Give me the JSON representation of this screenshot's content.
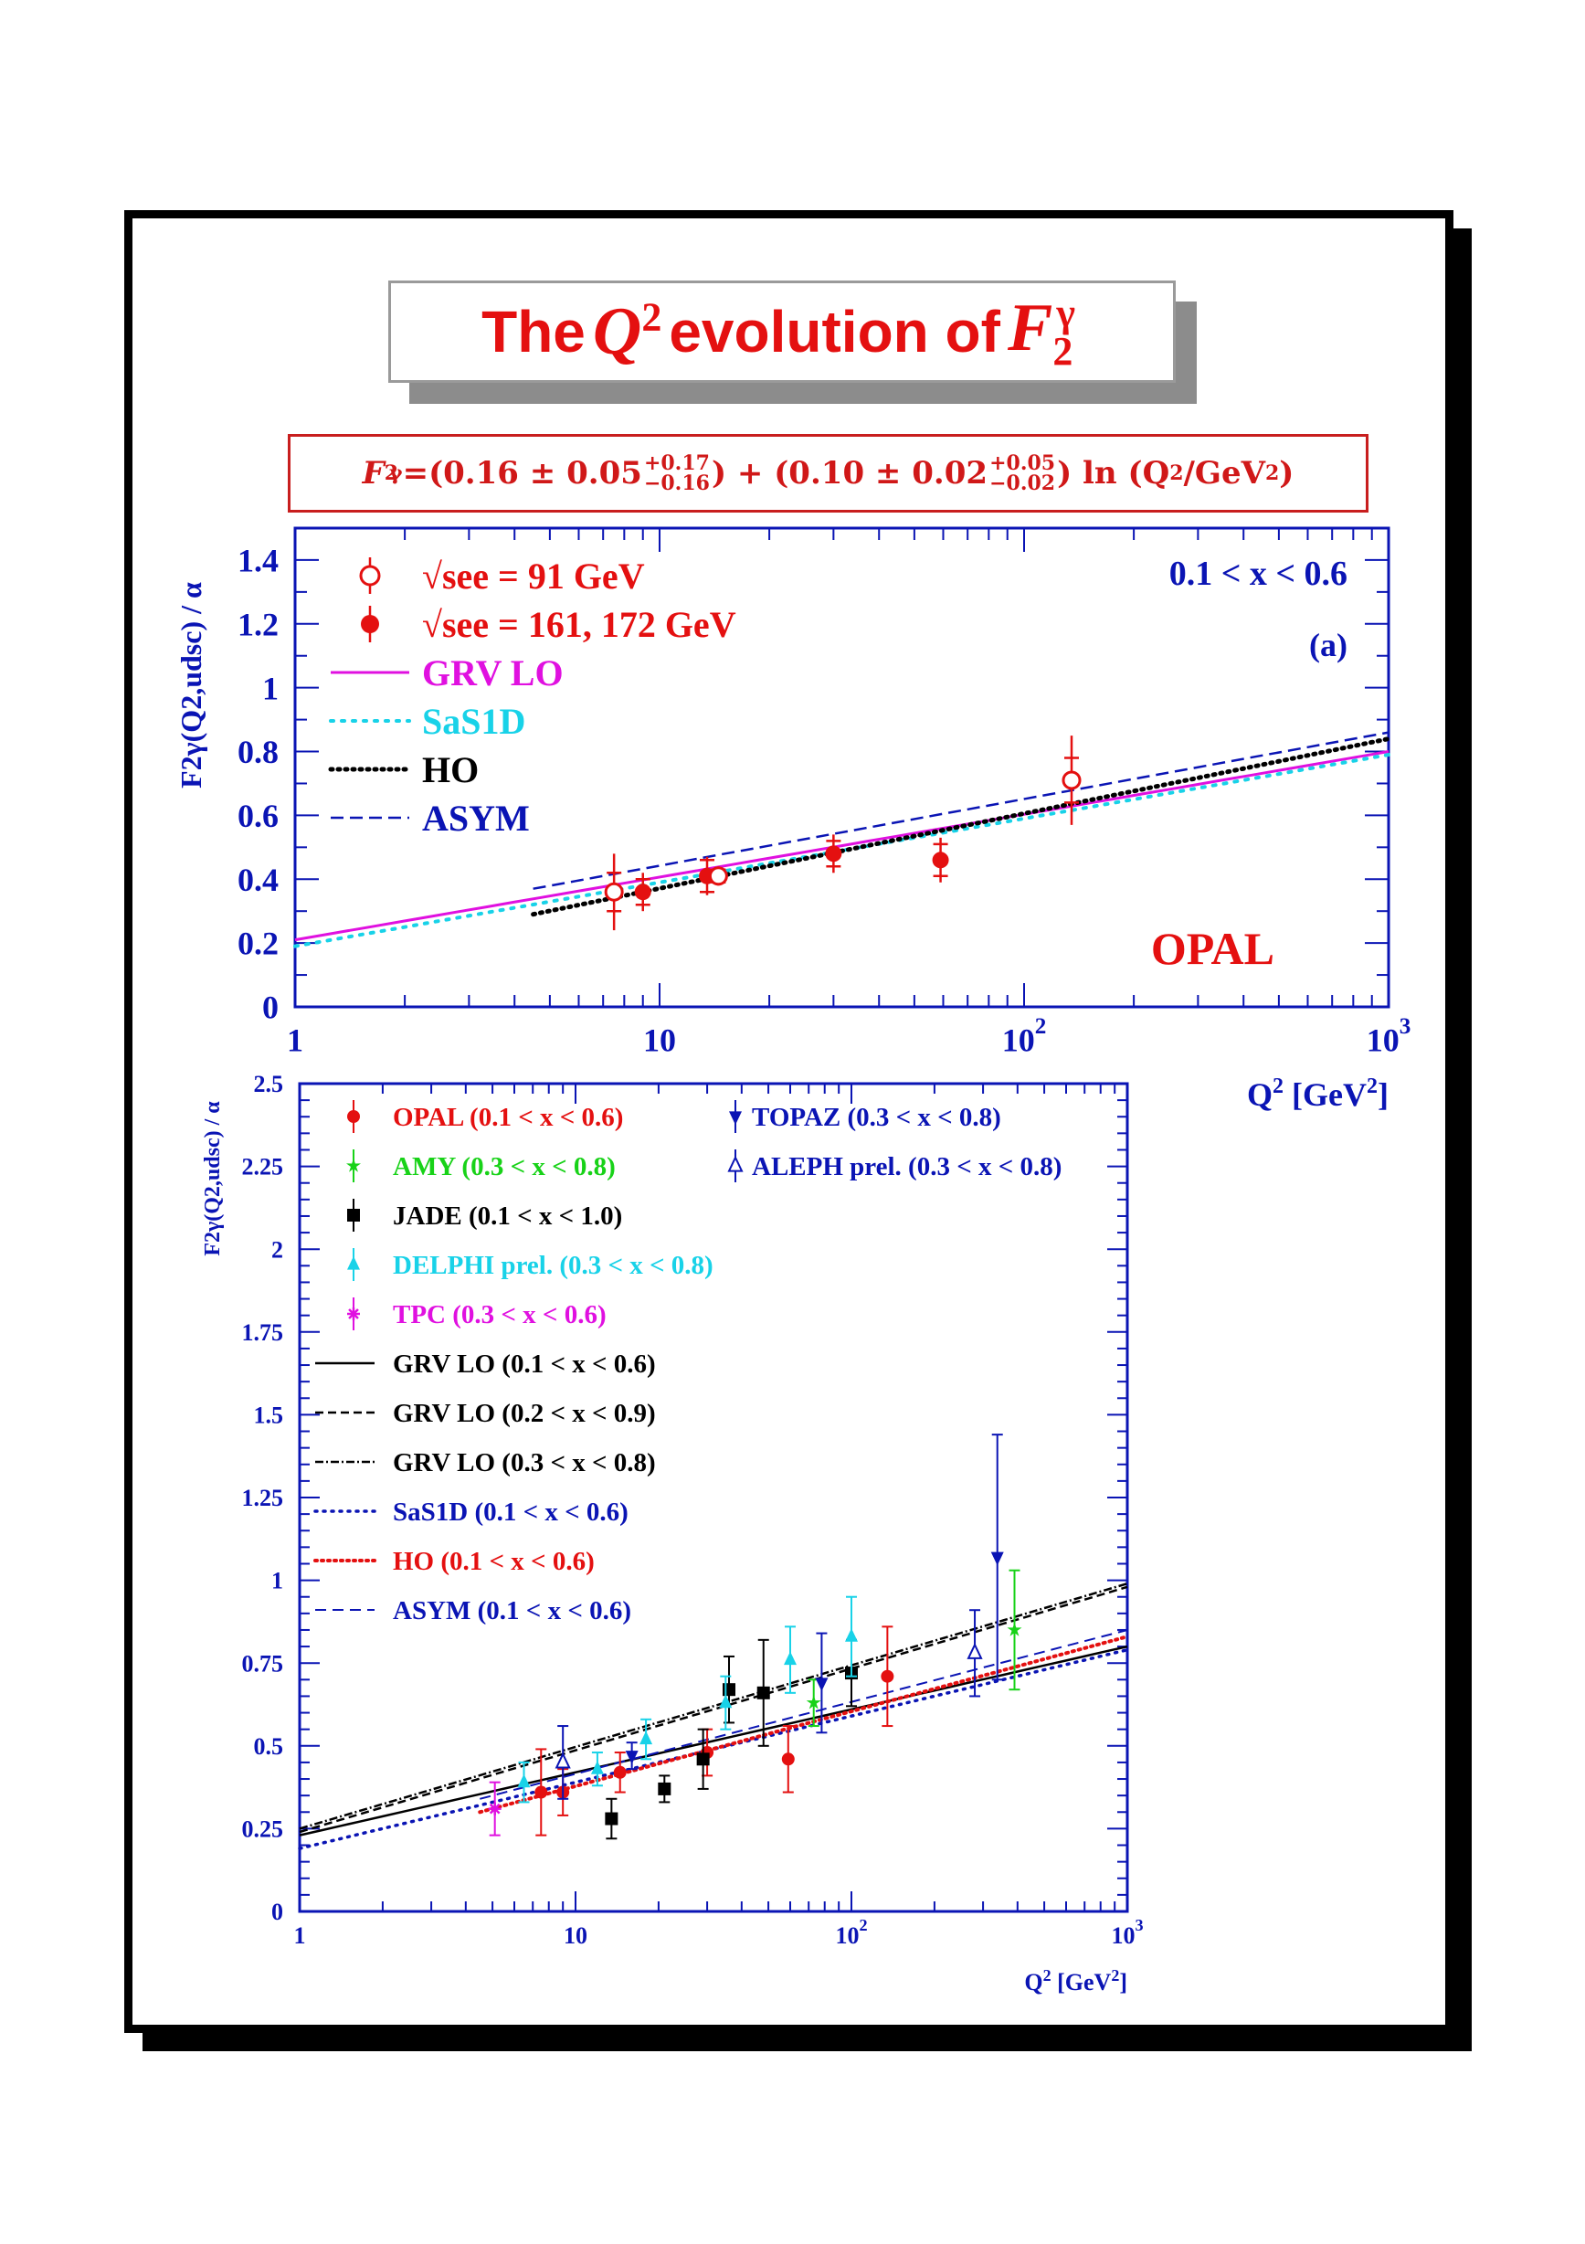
{
  "title": {
    "pre": "The",
    "q": "Q",
    "q_exp": "2",
    "mid": "evolution of",
    "f": "F",
    "f_sub": "2",
    "f_sup": "γ"
  },
  "formula": {
    "lhs": "F",
    "lhs_sub": "2",
    "lhs_sup": "γ",
    "part1": "=(0.16 ± 0.05",
    "up1": "+0.17",
    "dn1": "−0.16",
    "part2": ") + (0.10 ± 0.02",
    "up2": "+0.05",
    "dn2": "−0.02",
    "part3": ") ln (Q",
    "exp": "2",
    "part4": "/GeV",
    "exp2": "2",
    "part5": ")"
  },
  "colors": {
    "red": "#e41010",
    "blue": "#0a14b4",
    "magenta": "#e010e0",
    "cyan": "#18d2e8",
    "green": "#18d218",
    "black": "#000000"
  },
  "chart_data": [
    {
      "type": "scatter",
      "xscale": "log",
      "xlim": [
        1,
        1000
      ],
      "ylim": [
        0,
        1.5
      ],
      "ylabel": "F2γ(Q2,udsc) / α",
      "xlabel": "Q2 [GeV2]",
      "yticks": [
        "0",
        "0.2",
        "0.4",
        "0.6",
        "0.8",
        "1",
        "1.2",
        "1.4"
      ],
      "xticks": [
        "1",
        "10",
        "10 2",
        "10 3"
      ],
      "annotations": {
        "xrange": "0.1 < x < 0.6",
        "panel": "(a)",
        "experiment": "OPAL"
      },
      "legend": [
        "√see = 91 GeV",
        "√see = 161, 172 GeV",
        "GRV LO",
        "SaS1D",
        "HO",
        "ASYM"
      ],
      "points": [
        {
          "series": "91 GeV",
          "x": 7.5,
          "y": 0.36,
          "err": 0.12,
          "err_sys": 0.06
        },
        {
          "series": "161/172 GeV",
          "x": 9.0,
          "y": 0.36,
          "err": 0.06,
          "err_sys": 0.04
        },
        {
          "series": "161/172 GeV",
          "x": 13.5,
          "y": 0.41,
          "err": 0.06,
          "err_sys": 0.05
        },
        {
          "series": "91 GeV",
          "x": 14.5,
          "y": 0.41,
          "err": 0.03,
          "err_sys": 0.02
        },
        {
          "series": "161/172 GeV",
          "x": 30,
          "y": 0.48,
          "err": 0.06,
          "err_sys": 0.04
        },
        {
          "series": "161/172 GeV",
          "x": 59,
          "y": 0.46,
          "err": 0.07,
          "err_sys": 0.05
        },
        {
          "series": "91 GeV",
          "x": 135,
          "y": 0.71,
          "err": 0.14,
          "err_sys": 0.07
        }
      ],
      "curves": [
        {
          "name": "GRV LO",
          "style": "solid",
          "x": [
            1,
            1000
          ],
          "y": [
            0.21,
            0.8
          ]
        },
        {
          "name": "SaS1D",
          "style": "dotted-cyan",
          "x": [
            1,
            1000
          ],
          "y": [
            0.19,
            0.79
          ]
        },
        {
          "name": "HO",
          "style": "dotted-black",
          "x": [
            4.5,
            1000
          ],
          "y": [
            0.29,
            0.84
          ]
        },
        {
          "name": "ASYM",
          "style": "dashed",
          "x": [
            4.5,
            1000
          ],
          "y": [
            0.37,
            0.86
          ]
        }
      ]
    },
    {
      "type": "scatter",
      "xscale": "log",
      "xlim": [
        1,
        1000
      ],
      "ylim": [
        0,
        2.5
      ],
      "ylabel": "F2γ(Q2,udsc) / α",
      "xlabel": "Q2 [GeV2]",
      "yticks": [
        "0",
        "0.25",
        "0.5",
        "0.75",
        "1",
        "1.25",
        "1.5",
        "1.75",
        "2",
        "2.25",
        "2.5"
      ],
      "xticks": [
        "1",
        "10",
        "10 2",
        "10 3"
      ],
      "legend": [
        "OPAL (0.1 < x < 0.6)",
        "AMY (0.3 < x < 0.8)",
        "JADE (0.1 < x < 1.0)",
        "DELPHI prel. (0.3 < x < 0.8)",
        "TPC (0.3 < x < 0.6)",
        "GRV LO (0.1 < x < 0.6)",
        "GRV LO (0.2 < x < 0.9)",
        "GRV LO (0.3 < x < 0.8)",
        "SaS1D (0.1 < x < 0.6)",
        "HO (0.1 < x < 0.6)",
        "ASYM (0.1 < x < 0.6)"
      ],
      "legend_right": [
        "TOPAZ (0.3 < x < 0.8)",
        "ALEPH prel. (0.3 < x < 0.8)"
      ],
      "points": [
        {
          "series": "OPAL",
          "x": 7.5,
          "y": 0.36,
          "err": 0.13
        },
        {
          "series": "OPAL",
          "x": 9.0,
          "y": 0.36,
          "err": 0.07
        },
        {
          "series": "OPAL",
          "x": 14.5,
          "y": 0.42,
          "err": 0.06
        },
        {
          "series": "OPAL",
          "x": 30,
          "y": 0.48,
          "err": 0.07
        },
        {
          "series": "OPAL",
          "x": 59,
          "y": 0.46,
          "err": 0.1
        },
        {
          "series": "OPAL",
          "x": 135,
          "y": 0.71,
          "err": 0.15
        },
        {
          "series": "AMY",
          "x": 73,
          "y": 0.63,
          "err": 0.07
        },
        {
          "series": "AMY",
          "x": 390,
          "y": 0.85,
          "err": 0.18
        },
        {
          "series": "JADE",
          "x": 13.5,
          "y": 0.28,
          "err": 0.06
        },
        {
          "series": "JADE",
          "x": 21,
          "y": 0.37,
          "err": 0.04
        },
        {
          "series": "JADE",
          "x": 29,
          "y": 0.46,
          "err": 0.09
        },
        {
          "series": "JADE",
          "x": 36,
          "y": 0.67,
          "err": 0.1
        },
        {
          "series": "JADE",
          "x": 48,
          "y": 0.66,
          "err": 0.16
        },
        {
          "series": "JADE",
          "x": 100,
          "y": 0.72,
          "err": 0.1
        },
        {
          "series": "DELPHI",
          "x": 6.5,
          "y": 0.39,
          "err": 0.06
        },
        {
          "series": "DELPHI",
          "x": 12,
          "y": 0.43,
          "err": 0.05
        },
        {
          "series": "DELPHI",
          "x": 18,
          "y": 0.52,
          "err": 0.06
        },
        {
          "series": "DELPHI",
          "x": 35,
          "y": 0.63,
          "err": 0.08
        },
        {
          "series": "DELPHI",
          "x": 60,
          "y": 0.76,
          "err": 0.1
        },
        {
          "series": "DELPHI",
          "x": 100,
          "y": 0.83,
          "err": 0.12
        },
        {
          "series": "TPC",
          "x": 5.1,
          "y": 0.31,
          "err": 0.08
        },
        {
          "series": "TOPAZ",
          "x": 16,
          "y": 0.47,
          "err": 0.04
        },
        {
          "series": "TOPAZ",
          "x": 78,
          "y": 0.69,
          "err": 0.15
        },
        {
          "series": "TOPAZ",
          "x": 338,
          "y": 1.07,
          "err": 0.37
        },
        {
          "series": "ALEPH",
          "x": 9,
          "y": 0.45,
          "err": 0.11
        },
        {
          "series": "ALEPH",
          "x": 280,
          "y": 0.78,
          "err": 0.13
        }
      ],
      "curves": [
        {
          "name": "GRV LO (0.1 < x < 0.6)",
          "style": "solid",
          "x": [
            1,
            1000
          ],
          "y": [
            0.23,
            0.8
          ]
        },
        {
          "name": "GRV LO (0.2 < x < 0.9)",
          "style": "dashed-black",
          "x": [
            1,
            1000
          ],
          "y": [
            0.24,
            0.98
          ]
        },
        {
          "name": "GRV LO (0.3 < x < 0.8)",
          "style": "dashdot",
          "x": [
            1,
            1000
          ],
          "y": [
            0.25,
            0.99
          ]
        },
        {
          "name": "SaS1D (0.1 < x < 0.6)",
          "style": "dotted-blue",
          "x": [
            1,
            1000
          ],
          "y": [
            0.19,
            0.79
          ]
        },
        {
          "name": "HO (0.1 < x < 0.6)",
          "style": "dotted-red",
          "x": [
            4.5,
            1000
          ],
          "y": [
            0.3,
            0.83
          ]
        },
        {
          "name": "ASYM (0.1 < x < 0.6)",
          "style": "dashed-blue",
          "x": [
            4.5,
            1000
          ],
          "y": [
            0.34,
            0.85
          ]
        }
      ]
    }
  ]
}
